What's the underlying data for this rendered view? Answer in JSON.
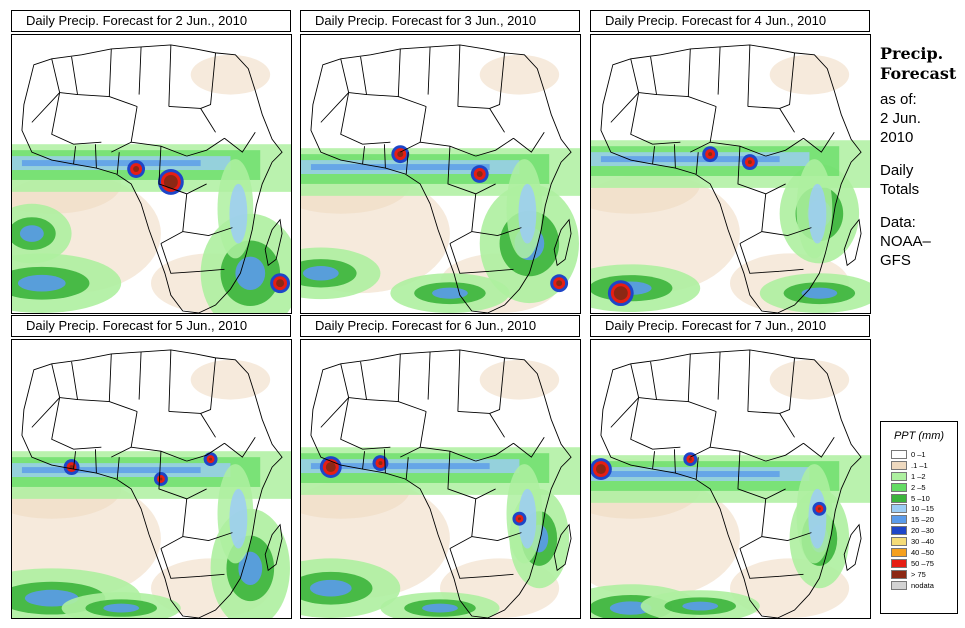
{
  "panels": [
    {
      "title": "Daily Precip. Forecast for  2 Jun., 2010",
      "variant": 0
    },
    {
      "title": "Daily Precip. Forecast for  3 Jun., 2010",
      "variant": 1
    },
    {
      "title": "Daily Precip. Forecast for  4 Jun., 2010",
      "variant": 2
    },
    {
      "title": "Daily Precip. Forecast for  5 Jun., 2010",
      "variant": 3
    },
    {
      "title": "Daily Precip. Forecast for  6 Jun., 2010",
      "variant": 4
    },
    {
      "title": "Daily Precip. Forecast for  7 Jun., 2010",
      "variant": 5
    }
  ],
  "side": {
    "title_line1": "Precip.",
    "title_line2": "Forecast",
    "asof_line1": "as of:",
    "asof_line2": "2 Jun.",
    "asof_line3": "2010",
    "totals_line1": "Daily",
    "totals_line2": "Totals",
    "data_line1": "Data:",
    "data_line2": "NOAA–",
    "data_line3": "GFS"
  },
  "legend": {
    "title": "PPT (mm)",
    "entries": [
      {
        "label": "0 –1",
        "color": "#ffffff"
      },
      {
        "label": ".1 –1",
        "color": "#eed9bf"
      },
      {
        "label": "1 –2",
        "color": "#aef0a0"
      },
      {
        "label": "2 –5",
        "color": "#64dc64"
      },
      {
        "label": "5 –10",
        "color": "#3cb43c"
      },
      {
        "label": "10 –15",
        "color": "#9ccdf5"
      },
      {
        "label": "15 –20",
        "color": "#5a9bea"
      },
      {
        "label": "20 –30",
        "color": "#1e46c8"
      },
      {
        "label": "30 –40",
        "color": "#f5dc78"
      },
      {
        "label": "40 –50",
        "color": "#f5a01e"
      },
      {
        "label": "50 –75",
        "color": "#e61e14"
      },
      {
        "label": "> 75",
        "color": "#8c2814"
      },
      {
        "label": "nodata",
        "color": "#d2d2d2"
      }
    ]
  }
}
